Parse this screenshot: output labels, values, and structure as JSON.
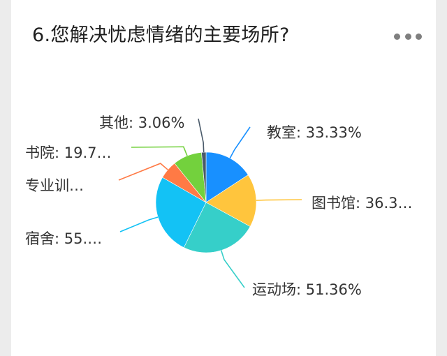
{
  "question": {
    "title": "6.您解决忧虑情绪的主要场所?"
  },
  "more_icon": "more-horizontal-icon",
  "chart_data": {
    "type": "pie",
    "title": "6.您解决忧虑情绪的主要场所?",
    "slices": [
      {
        "name": "教室",
        "value": 33.33,
        "label": "教室: 33.33%",
        "color": "#1890ff"
      },
      {
        "name": "图书馆",
        "value": 36.3,
        "label": "图书馆: 36.3…",
        "color": "#ffc53d"
      },
      {
        "name": "运动场",
        "value": 51.36,
        "label": "运动场: 51.36%",
        "color": "#36cfc9"
      },
      {
        "name": "宿舍",
        "value": 55,
        "label": "宿舍: 55.…",
        "color": "#13c2f5"
      },
      {
        "name": "专业训…",
        "value": 12.5,
        "label": "专业训…",
        "color": "#ff7a45"
      },
      {
        "name": "书院",
        "value": 19.7,
        "label": "书院: 19.7…",
        "color": "#73d13d"
      },
      {
        "name": "其他",
        "value": 3.06,
        "label": "其他: 3.06%",
        "color": "#4a5a6a"
      }
    ]
  }
}
